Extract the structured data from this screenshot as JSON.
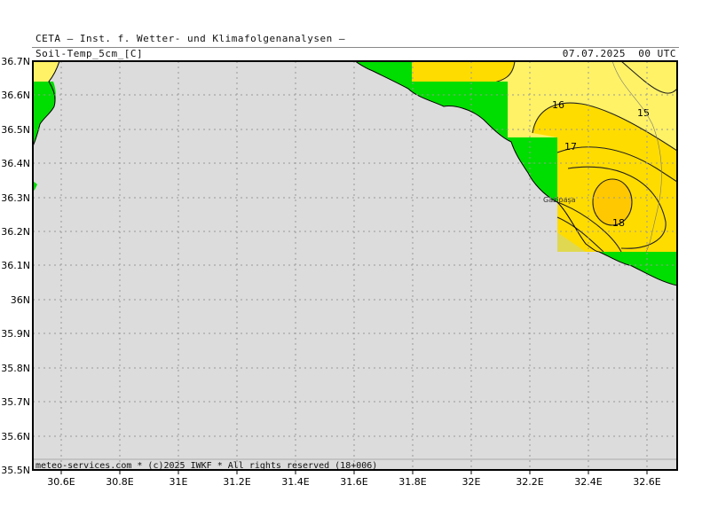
{
  "header": {
    "institute": "CETA – Inst. f. Wetter- und Klimafolgenanalysen –",
    "variable": "Soil-Temp_5cm_[C]",
    "valid_time": "07.07.2025  00 UTC"
  },
  "footer": {
    "copyright": "meteo-services.com * (c)2025 IWKF * All rights reserved (18+006)"
  },
  "map": {
    "lat_ticks": [
      "36.7N",
      "36.6N",
      "36.5N",
      "36.4N",
      "36.3N",
      "36.2N",
      "36.1N",
      "36N",
      "35.9N",
      "35.8N",
      "35.7N",
      "35.6N",
      "35.5N"
    ],
    "lon_ticks": [
      "30.6E",
      "30.8E",
      "31E",
      "31.2E",
      "31.4E",
      "31.6E",
      "31.8E",
      "32E",
      "32.2E",
      "32.4E",
      "32.6E"
    ],
    "city_label": "Gazipaşa",
    "contour_labels": [
      "15",
      "16",
      "17",
      "18"
    ],
    "colors": {
      "sea": "#dcdcdc",
      "land_mask": "#00dd00",
      "band_15_16": "#fff266",
      "band_16_17": "#ffdc00",
      "band_17_18": "#ffc800",
      "grid": "#999999"
    }
  }
}
